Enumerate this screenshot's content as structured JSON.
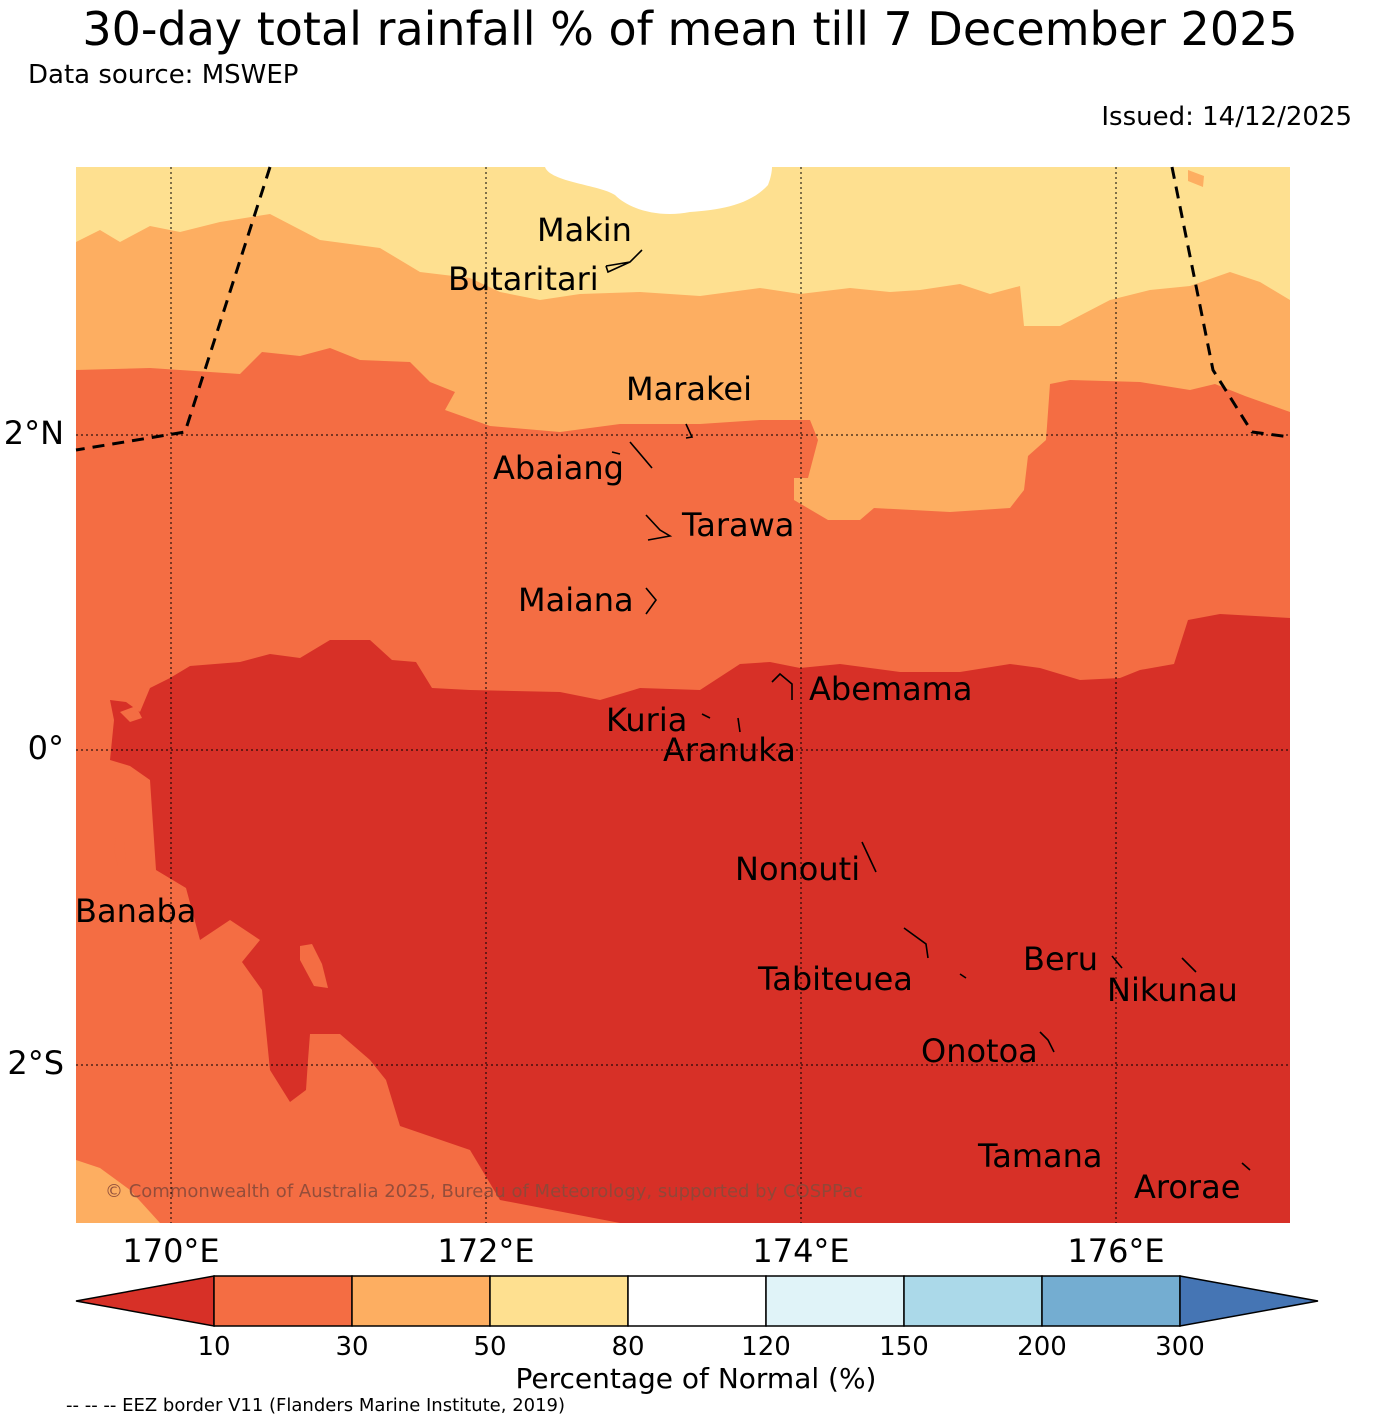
{
  "title": "30-day total rainfall % of mean till 7 December 2025",
  "data_source": "Data source: MSWEP",
  "issued": "Issued: 14/12/2025",
  "copyright": "© Commonwealth of Australia 2025, Bureau of Meteorology, supported by COSPPac",
  "longitude_labels": [
    "170°E",
    "172°E",
    "174°E",
    "176°E"
  ],
  "latitude_labels": [
    "2°N",
    "0°",
    "2°S"
  ],
  "islands": [
    "Makin",
    "Butaritari",
    "Marakei",
    "Abaiang",
    "Tarawa",
    "Maiana",
    "Abemama",
    "Kuria",
    "Aranuka",
    "Banaba",
    "Nonouti",
    "Beru",
    "Tabiteuea",
    "Nikunau",
    "Onotoa",
    "Tamana",
    "Arorae"
  ],
  "colorbar": {
    "label": "Percentage of Normal (%)",
    "ticks": [
      "10",
      "30",
      "50",
      "80",
      "120",
      "150",
      "200",
      "300"
    ],
    "colors": [
      "#d73027",
      "#f46d43",
      "#fdae61",
      "#fee090",
      "#ffffff",
      "#e0f3f8",
      "#abd9e9",
      "#74add1",
      "#4575b4"
    ]
  },
  "eez_note": "-- -- -- EEZ border V11 (Flanders Marine Institute, 2019)"
}
